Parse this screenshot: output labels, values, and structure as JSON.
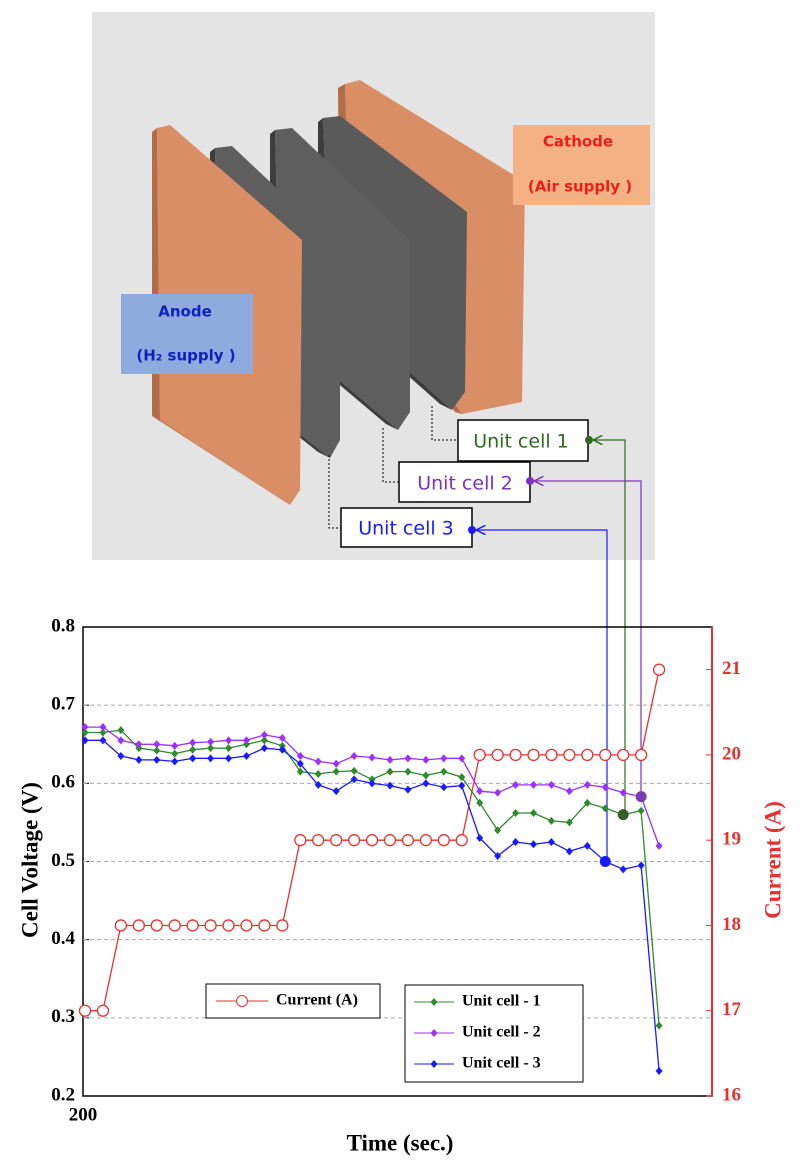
{
  "diagram": {
    "cathode": "Cathode",
    "cathode_supply": "(Air supply )",
    "anode": "Anode",
    "anode_supply": "(H₂ supply )",
    "cells": [
      "Unit cell 1",
      "Unit cell 2",
      "Unit cell 3"
    ]
  },
  "chart_data": {
    "type": "line",
    "categories": [
      "200",
      null,
      null,
      null,
      null,
      null,
      null,
      null,
      null,
      null,
      null,
      null,
      null,
      null,
      null,
      null,
      null,
      null,
      null,
      null,
      null,
      null,
      null,
      null,
      null,
      null,
      null,
      null,
      null,
      null,
      null,
      null,
      null
    ],
    "xlabel": "Time  (sec.)",
    "ylabel": "Cell Voltage (V)",
    "y2label": "Current (A)",
    "ylim": [
      0.2,
      0.8
    ],
    "yticks": [
      0.2,
      0.3,
      0.4,
      0.5,
      0.6,
      0.7,
      0.8
    ],
    "y2lim": [
      16,
      21.5
    ],
    "y2ticks": [
      16,
      17,
      18,
      19,
      20,
      21
    ],
    "grid": true,
    "series": [
      {
        "name": "Current (A)",
        "color": "#e8312e",
        "axis": "y2",
        "marker": "open-circle",
        "values": [
          17,
          17,
          18,
          18,
          18,
          18,
          18,
          18,
          18,
          18,
          18,
          18,
          19,
          19,
          19,
          19,
          19,
          19,
          19,
          19,
          19,
          19,
          20,
          20,
          20,
          20,
          20,
          20,
          20,
          20,
          20,
          20,
          21
        ]
      },
      {
        "name": "Unit cell  - 1",
        "color": "#2e8b2e",
        "marker": "diamond",
        "values": [
          0.665,
          0.665,
          0.668,
          0.645,
          0.642,
          0.638,
          0.643,
          0.645,
          0.645,
          0.65,
          0.655,
          0.648,
          0.615,
          0.612,
          0.615,
          0.616,
          0.605,
          0.615,
          0.615,
          0.61,
          0.615,
          0.608,
          0.575,
          0.54,
          0.562,
          0.562,
          0.552,
          0.55,
          0.575,
          0.568,
          0.56,
          0.565,
          0.29
        ]
      },
      {
        "name": "Unit cell  - 2",
        "color": "#9b30ff",
        "marker": "diamond",
        "values": [
          0.672,
          0.672,
          0.655,
          0.65,
          0.65,
          0.648,
          0.652,
          0.653,
          0.655,
          0.655,
          0.662,
          0.658,
          0.635,
          0.628,
          0.625,
          0.635,
          0.633,
          0.63,
          0.632,
          0.63,
          0.632,
          0.632,
          0.59,
          0.588,
          0.598,
          0.598,
          0.598,
          0.59,
          0.598,
          0.595,
          0.588,
          0.583,
          0.52
        ]
      },
      {
        "name": "Unit cell  - 3",
        "color": "#1a1aff",
        "marker": "diamond",
        "values": [
          0.655,
          0.655,
          0.635,
          0.63,
          0.63,
          0.628,
          0.632,
          0.632,
          0.632,
          0.635,
          0.645,
          0.643,
          0.625,
          0.598,
          0.59,
          0.605,
          0.6,
          0.597,
          0.592,
          0.6,
          0.595,
          0.597,
          0.53,
          0.507,
          0.525,
          0.522,
          0.525,
          0.513,
          0.52,
          0.5,
          0.49,
          0.495,
          0.232
        ]
      }
    ]
  }
}
